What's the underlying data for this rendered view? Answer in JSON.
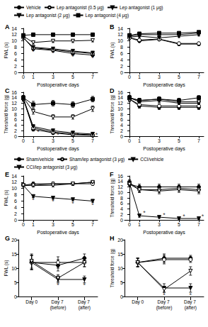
{
  "chart_data": [
    {
      "type": "line",
      "title": "A",
      "x": [
        0,
        1,
        3,
        5,
        7
      ],
      "xlim": [
        -0.5,
        7.5
      ],
      "xticks": [
        0,
        1,
        3,
        5,
        7
      ],
      "ylim": [
        0,
        14
      ],
      "yticks": [
        0,
        2,
        4,
        6,
        8,
        10,
        12,
        14
      ],
      "x_label": "Postoperative days",
      "y_label": "FWL (s)",
      "legend": "top",
      "series": [
        {
          "name": "Vehicle",
          "color": "#000000",
          "marker": "circle",
          "values": [
            11.2,
            7.5,
            7.0,
            6.0,
            5.5
          ],
          "errors": [
            0.6,
            0.4,
            0.4,
            0.5,
            0.4
          ]
        },
        {
          "name": "Lep antagonist (0.5 μg)",
          "color": "#000000",
          "marker": "circle-open",
          "values": [
            11.0,
            7.8,
            7.2,
            6.5,
            6.0
          ],
          "errors": [
            0.5,
            0.4,
            0.4,
            0.4,
            0.4
          ]
        },
        {
          "name": "Lep antagonist (1 μg)",
          "color": "#000000",
          "marker": "triangle-down",
          "values": [
            11.0,
            8.0,
            7.5,
            6.8,
            6.2
          ],
          "errors": [
            0.5,
            0.4,
            0.4,
            0.4,
            0.4
          ]
        },
        {
          "name": "Lep antagonist (2 μg)",
          "color": "#000000",
          "marker": "triangle-down-open",
          "values": [
            11.5,
            9.5,
            10.0,
            10.0,
            10.2
          ],
          "errors": [
            0.5,
            0.5,
            0.5,
            0.5,
            0.5
          ]
        },
        {
          "name": "Lep antagonist (4 μg)",
          "color": "#000000",
          "marker": "square",
          "values": [
            11.8,
            12.0,
            12.0,
            12.0,
            12.0
          ],
          "errors": [
            0.5,
            0.5,
            0.5,
            0.5,
            0.5
          ]
        }
      ],
      "annotations": [
        {
          "text": "*",
          "x": 1,
          "y": 6.5
        },
        {
          "text": "*",
          "x": 3,
          "y": 6.0
        },
        {
          "text": "*",
          "x": 5,
          "y": 5.0
        },
        {
          "text": "*",
          "x": 7,
          "y": 4.5
        }
      ]
    },
    {
      "type": "line",
      "title": "B",
      "x": [
        0,
        1,
        3,
        5,
        7
      ],
      "xlim": [
        -0.5,
        7.5
      ],
      "xticks": [
        0,
        1,
        3,
        5,
        7
      ],
      "ylim": [
        0,
        14
      ],
      "yticks": [
        0,
        2,
        4,
        6,
        8,
        10,
        12,
        14
      ],
      "x_label": "Postoperative days",
      "y_label": "FWL (s)",
      "series": [
        {
          "name": "Vehicle",
          "color": "#000000",
          "marker": "circle",
          "values": [
            11.0,
            10.0,
            10.5,
            9.0,
            9.0
          ],
          "errors": [
            0.5,
            0.4,
            0.4,
            0.4,
            0.4
          ]
        },
        {
          "name": "Lep antagonist (0.5 μg)",
          "color": "#000000",
          "marker": "circle-open",
          "values": [
            11.0,
            10.3,
            10.6,
            9.2,
            9.2
          ],
          "errors": [
            0.5,
            0.4,
            0.4,
            0.4,
            0.4
          ]
        },
        {
          "name": "Lep antagonist (1 μg)",
          "color": "#000000",
          "marker": "triangle-down",
          "values": [
            11.2,
            11.5,
            11.0,
            11.5,
            12.0
          ],
          "errors": [
            0.5,
            0.4,
            0.4,
            0.4,
            0.4
          ]
        },
        {
          "name": "Lep antagonist (2 μg)",
          "color": "#000000",
          "marker": "triangle-down-open",
          "values": [
            11.5,
            12.0,
            12.0,
            12.0,
            12.5
          ],
          "errors": [
            0.5,
            0.4,
            0.4,
            0.4,
            0.4
          ]
        },
        {
          "name": "Lep antagonist (4 μg)",
          "color": "#000000",
          "marker": "square",
          "values": [
            11.8,
            12.3,
            12.5,
            12.5,
            12.8
          ],
          "errors": [
            0.5,
            0.4,
            0.4,
            0.4,
            0.4
          ]
        }
      ]
    },
    {
      "type": "line",
      "title": "C",
      "x": [
        0,
        1,
        3,
        5,
        7
      ],
      "xlim": [
        -0.5,
        7.5
      ],
      "xticks": [
        0,
        1,
        3,
        5,
        7
      ],
      "ylim": [
        0,
        16
      ],
      "yticks": [
        0,
        2,
        4,
        6,
        8,
        10,
        12,
        14,
        16
      ],
      "x_label": "Postoperative days",
      "y_label": "Threshold force (g)",
      "series": [
        {
          "name": "Vehicle",
          "color": "#000000",
          "marker": "circle",
          "values": [
            13.5,
            2.5,
            1.2,
            0.5,
            0.3
          ],
          "errors": [
            0.8,
            0.6,
            0.5,
            0.3,
            0.2
          ]
        },
        {
          "name": "Lep antagonist (0.5 μg)",
          "color": "#000000",
          "marker": "circle-open",
          "values": [
            13.6,
            3.0,
            1.5,
            0.8,
            0.5
          ],
          "errors": [
            0.8,
            0.6,
            0.5,
            0.4,
            0.3
          ]
        },
        {
          "name": "Lep antagonist (1 μg)",
          "color": "#000000",
          "marker": "triangle-down",
          "values": [
            13.8,
            3.5,
            2.0,
            1.2,
            0.8
          ],
          "errors": [
            0.8,
            0.7,
            0.6,
            0.5,
            0.4
          ]
        },
        {
          "name": "Lep antagonist (2 μg)",
          "color": "#000000",
          "marker": "triangle-down-open",
          "values": [
            14.0,
            9.0,
            7.0,
            7.0,
            10.0
          ],
          "errors": [
            0.8,
            1.0,
            0.8,
            0.8,
            1.0
          ]
        },
        {
          "name": "Lep antagonist (4 μg)",
          "color": "#000000",
          "marker": "square",
          "values": [
            14.0,
            11.5,
            12.0,
            11.5,
            13.5
          ],
          "errors": [
            0.8,
            1.2,
            1.0,
            1.0,
            1.0
          ]
        }
      ],
      "annotations": [
        {
          "text": "*",
          "x": 1.5,
          "y": 1.5
        },
        {
          "text": "*",
          "x": 3.5,
          "y": 0.6
        },
        {
          "text": "*",
          "x": 5.5,
          "y": 0.4
        },
        {
          "text": "*",
          "x": 7.4,
          "y": 0.4
        }
      ]
    },
    {
      "type": "line",
      "title": "D",
      "x": [
        0,
        1,
        3,
        5,
        7
      ],
      "xlim": [
        -0.5,
        7.5
      ],
      "xticks": [
        0,
        1,
        3,
        5,
        7
      ],
      "ylim": [
        0,
        16
      ],
      "yticks": [
        0,
        2,
        4,
        6,
        8,
        10,
        12,
        14,
        16
      ],
      "x_label": "Postoperative days",
      "y_label": "Threshold force (g)",
      "series": [
        {
          "name": "Vehicle",
          "color": "#000000",
          "marker": "circle",
          "values": [
            13.5,
            11.0,
            10.5,
            10.5,
            10.5
          ],
          "errors": [
            0.8,
            0.8,
            0.8,
            0.8,
            0.8
          ]
        },
        {
          "name": "Lep antagonist (0.5 μg)",
          "color": "#000000",
          "marker": "circle-open",
          "values": [
            13.5,
            11.5,
            11.0,
            11.0,
            11.0
          ],
          "errors": [
            0.8,
            0.8,
            0.8,
            0.8,
            0.8
          ]
        },
        {
          "name": "Lep antagonist (1 μg)",
          "color": "#000000",
          "marker": "triangle-down",
          "values": [
            14.0,
            12.5,
            13.0,
            12.0,
            12.0
          ],
          "errors": [
            0.8,
            0.8,
            0.8,
            0.8,
            0.8
          ]
        },
        {
          "name": "Lep antagonist (2 μg)",
          "color": "#000000",
          "marker": "triangle-down-open",
          "values": [
            14.0,
            13.0,
            13.5,
            12.5,
            12.5
          ],
          "errors": [
            0.8,
            0.8,
            0.8,
            0.8,
            0.8
          ]
        },
        {
          "name": "Lep antagonist (4 μg)",
          "color": "#000000",
          "marker": "square",
          "values": [
            14.0,
            13.0,
            13.5,
            13.0,
            14.0
          ],
          "errors": [
            0.8,
            0.8,
            0.8,
            0.8,
            0.8
          ]
        }
      ]
    },
    {
      "type": "line",
      "title": "E",
      "x": [
        0,
        1,
        3,
        5,
        7
      ],
      "xlim": [
        -0.5,
        7.5
      ],
      "xticks": [
        0,
        1,
        3,
        5,
        7
      ],
      "ylim": [
        0,
        14
      ],
      "yticks": [
        0,
        2,
        4,
        6,
        8,
        10,
        12,
        14
      ],
      "x_label": "Postoperative days",
      "y_label": "FWL (s)",
      "legend": "top",
      "series": [
        {
          "name": "Sham/vehicle",
          "color": "#000000",
          "marker": "circle",
          "values": [
            11.0,
            11.5,
            11.5,
            11.5,
            12.0
          ],
          "errors": [
            0.5,
            0.5,
            0.5,
            0.5,
            0.5
          ]
        },
        {
          "name": "Sham/lep antagonist (3 μg)",
          "color": "#000000",
          "marker": "circle-open",
          "values": [
            11.0,
            11.0,
            11.5,
            11.5,
            11.5
          ],
          "errors": [
            0.5,
            0.5,
            0.5,
            0.5,
            0.5
          ]
        },
        {
          "name": "CCI/vehicle",
          "color": "#000000",
          "marker": "triangle-down",
          "values": [
            11.0,
            7.5,
            7.0,
            6.5,
            6.0
          ],
          "errors": [
            0.5,
            0.4,
            0.4,
            0.4,
            0.4
          ]
        },
        {
          "name": "CCI/lep antagonist (3 μg)",
          "color": "#000000",
          "marker": "triangle-down-open",
          "values": [
            11.0,
            11.0,
            11.0,
            11.5,
            12.0
          ],
          "errors": [
            0.5,
            0.5,
            0.5,
            0.5,
            0.5
          ]
        }
      ],
      "annotations": [
        {
          "text": "*",
          "x": 1,
          "y": 6.3
        },
        {
          "text": "*",
          "x": 3,
          "y": 5.8
        },
        {
          "text": "*",
          "x": 5,
          "y": 5.3
        },
        {
          "text": "*",
          "x": 7,
          "y": 4.8
        }
      ]
    },
    {
      "type": "line",
      "title": "F",
      "x": [
        0,
        1,
        3,
        5,
        7
      ],
      "xlim": [
        -0.5,
        7.5
      ],
      "xticks": [
        0,
        1,
        3,
        5,
        7
      ],
      "ylim": [
        0,
        16
      ],
      "yticks": [
        0,
        2,
        4,
        6,
        8,
        10,
        12,
        14,
        16
      ],
      "x_label": "Postoperative days",
      "y_label": "Threshold force (g)",
      "series": [
        {
          "name": "Sham/vehicle",
          "color": "#000000",
          "marker": "circle",
          "values": [
            13.0,
            12.0,
            12.0,
            12.0,
            12.0
          ],
          "errors": [
            1.0,
            1.0,
            1.0,
            1.0,
            1.0
          ]
        },
        {
          "name": "Sham/lep antagonist (3 μg)",
          "color": "#000000",
          "marker": "circle-open",
          "values": [
            13.5,
            11.0,
            11.0,
            11.5,
            11.0
          ],
          "errors": [
            1.0,
            1.0,
            1.0,
            1.0,
            1.0
          ]
        },
        {
          "name": "CCI/vehicle",
          "color": "#000000",
          "marker": "triangle-down",
          "values": [
            13.5,
            1.5,
            1.0,
            0.5,
            0.5
          ],
          "errors": [
            1.0,
            0.5,
            0.4,
            0.3,
            0.3
          ]
        },
        {
          "name": "CCI/lep antagonist (3 μg)",
          "color": "#000000",
          "marker": "triangle-down-open",
          "values": [
            13.0,
            11.0,
            10.5,
            11.0,
            10.5
          ],
          "errors": [
            1.0,
            1.0,
            1.0,
            1.0,
            1.0
          ]
        }
      ],
      "annotations": [
        {
          "text": "*",
          "x": 1.5,
          "y": 2.5
        },
        {
          "text": "*",
          "x": 3.5,
          "y": 1.8
        },
        {
          "text": "*",
          "x": 5.5,
          "y": 1.2
        },
        {
          "text": "*",
          "x": 7.4,
          "y": 1.2
        }
      ]
    },
    {
      "type": "line",
      "title": "G",
      "categories": [
        "Day 0",
        "Day 7 (before)",
        "Day 7 (after)"
      ],
      "ylim": [
        0,
        20
      ],
      "yticks": [
        0,
        5,
        10,
        15,
        20
      ],
      "y_label": "FWL (s)",
      "series": [
        {
          "name": "Sham/vehicle",
          "color": "#000000",
          "marker": "circle",
          "values": [
            12.0,
            11.0,
            13.5
          ],
          "errors": [
            2.5,
            2.0,
            1.5
          ]
        },
        {
          "name": "Sham/lep antagonist (3 μg)",
          "color": "#000000",
          "marker": "circle-open",
          "values": [
            12.0,
            12.0,
            12.0
          ],
          "errors": [
            2.5,
            2.0,
            1.5
          ]
        },
        {
          "name": "CCI/vehicle",
          "color": "#000000",
          "marker": "triangle-down",
          "values": [
            12.0,
            6.0,
            6.0
          ],
          "errors": [
            2.5,
            1.2,
            1.2
          ]
        },
        {
          "name": "CCI/lep antagonist (3 μg)",
          "color": "#000000",
          "marker": "triangle-down-open",
          "values": [
            12.5,
            6.5,
            12.0
          ],
          "errors": [
            2.5,
            1.2,
            1.5
          ]
        }
      ],
      "annotations": [
        {
          "text": "*",
          "x": "Day 7 (before)",
          "y": 4.0
        },
        {
          "text": "*",
          "x": "Day 7 (after)",
          "y": 4.0
        }
      ]
    },
    {
      "type": "line",
      "title": "H",
      "categories": [
        "Day 0",
        "Day 7 (before)",
        "Day 7 (after)"
      ],
      "ylim": [
        0,
        20
      ],
      "yticks": [
        0,
        5,
        10,
        15,
        20
      ],
      "y_label": "Threshold force (g)",
      "series": [
        {
          "name": "Sham/vehicle",
          "color": "#000000",
          "marker": "circle",
          "values": [
            12.0,
            13.5,
            13.5
          ],
          "errors": [
            1.5,
            1.5,
            1.0
          ]
        },
        {
          "name": "Sham/lep antagonist (3 μg)",
          "color": "#000000",
          "marker": "circle-open",
          "values": [
            12.0,
            13.0,
            13.0
          ],
          "errors": [
            1.5,
            1.5,
            1.0
          ]
        },
        {
          "name": "CCI/vehicle",
          "color": "#000000",
          "marker": "triangle-down",
          "values": [
            12.0,
            3.0,
            3.0
          ],
          "errors": [
            1.5,
            1.5,
            1.5
          ]
        },
        {
          "name": "CCI/lep antagonist (3 μg)",
          "color": "#000000",
          "marker": "triangle-down-open",
          "values": [
            12.0,
            2.5,
            9.0
          ],
          "errors": [
            1.5,
            1.0,
            1.5
          ]
        }
      ],
      "annotations": [
        {
          "text": "*",
          "x": "Day 7 (before)",
          "y": 0.6
        },
        {
          "text": "*",
          "x": "Day 7 (after)",
          "y": 0.6
        }
      ]
    }
  ]
}
